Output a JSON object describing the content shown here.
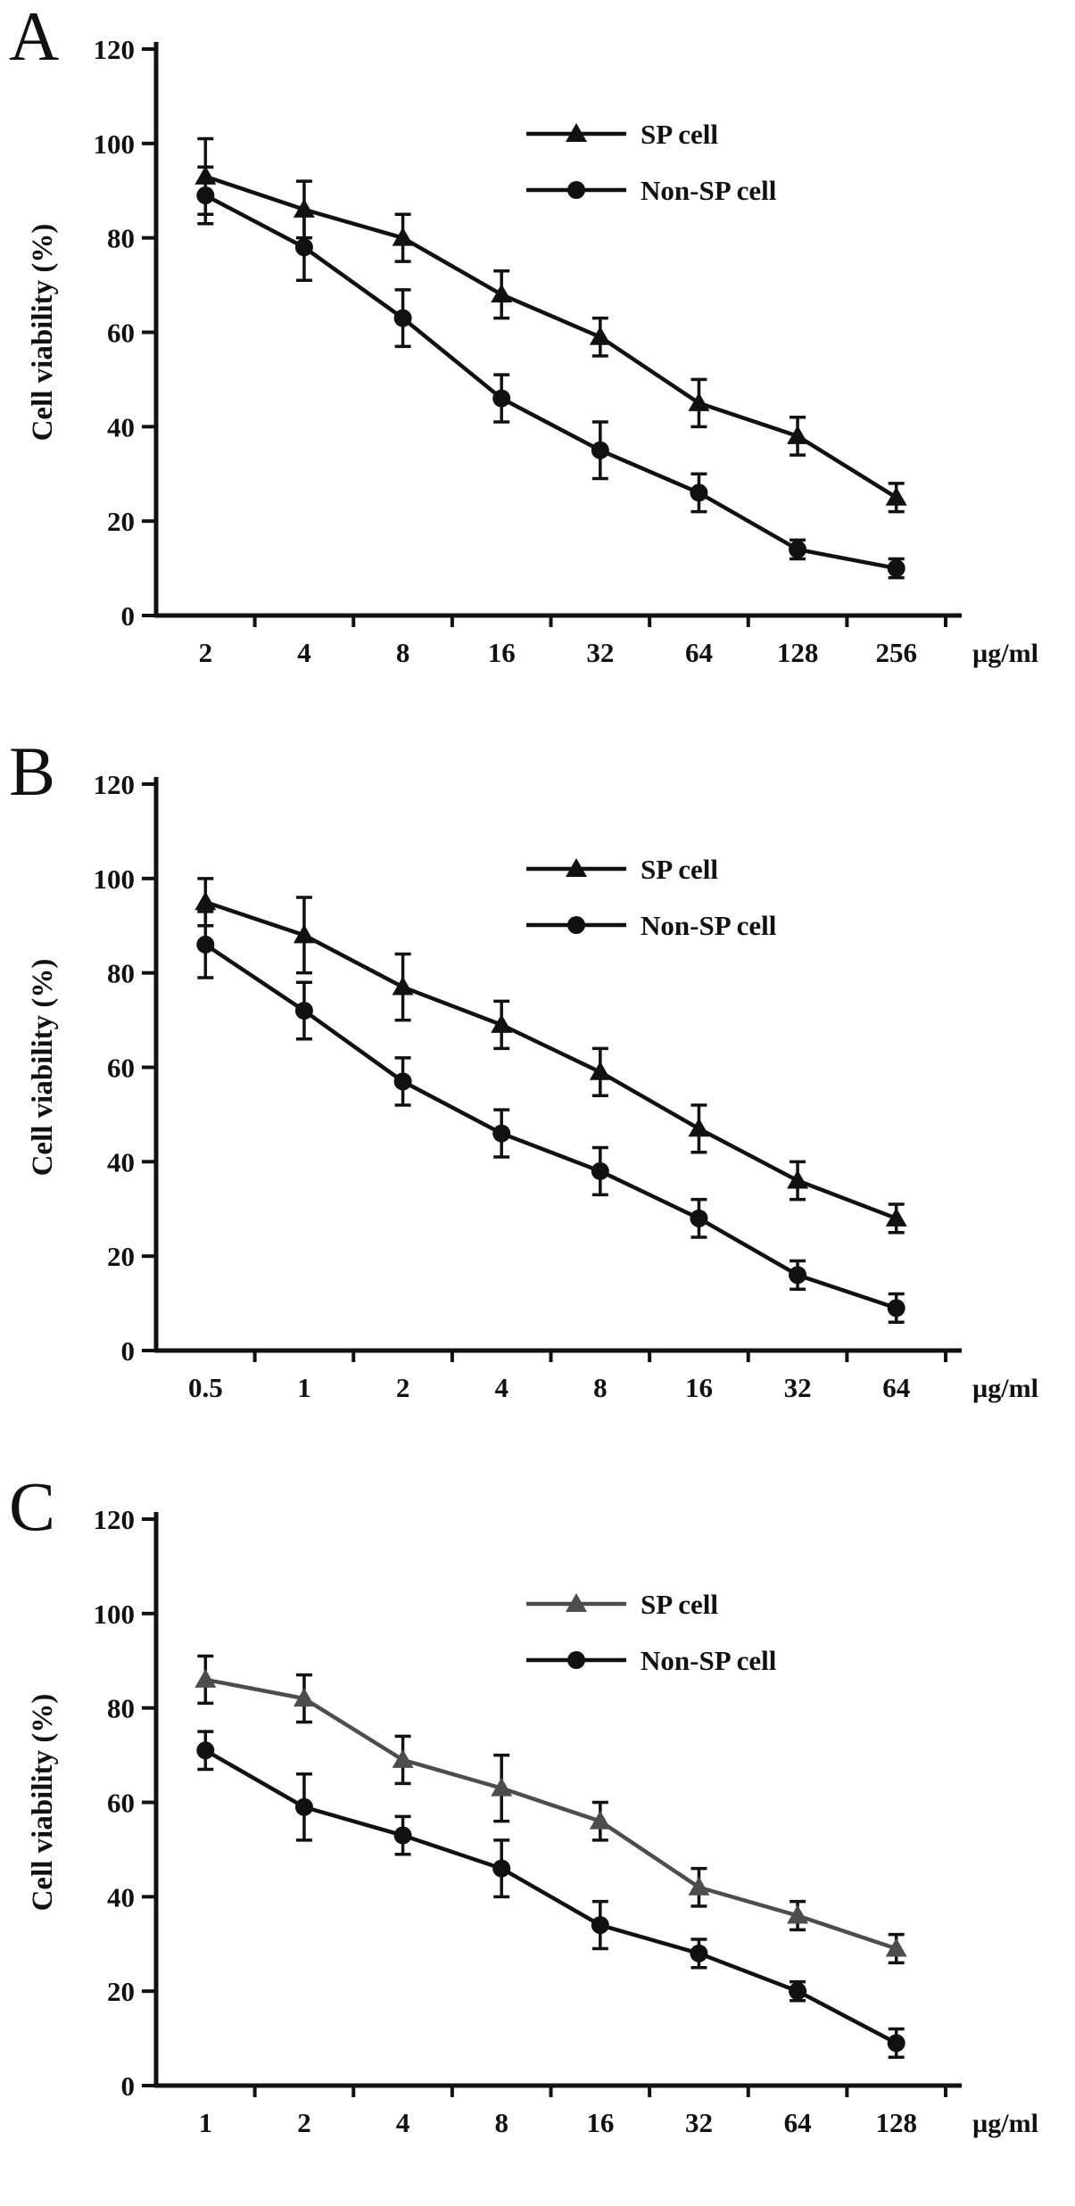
{
  "figure": {
    "description": "Three-panel dose-response figure comparing SP cell and Non-SP cell viability"
  },
  "chart_data": [
    {
      "panel": "A",
      "type": "line",
      "title": "",
      "xlabel": "",
      "ylabel": "Cell viability (%)",
      "x_unit": "µg/ml",
      "ylim": [
        0,
        120
      ],
      "yticks": [
        0,
        20,
        40,
        60,
        80,
        100,
        120
      ],
      "categories": [
        "2",
        "4",
        "8",
        "16",
        "32",
        "64",
        "128",
        "256"
      ],
      "grid": false,
      "legend_position": "upper-right",
      "series": [
        {
          "name": "SP cell",
          "marker": "triangle",
          "color": "#111111",
          "values": [
            93,
            86,
            80,
            68,
            59,
            45,
            38,
            25
          ],
          "errors": [
            8,
            6,
            5,
            5,
            4,
            5,
            4,
            3
          ]
        },
        {
          "name": "Non-SP cell",
          "marker": "circle",
          "color": "#111111",
          "values": [
            89,
            78,
            63,
            46,
            35,
            26,
            14,
            10
          ],
          "errors": [
            6,
            7,
            6,
            5,
            6,
            4,
            2,
            2
          ]
        }
      ]
    },
    {
      "panel": "B",
      "type": "line",
      "title": "",
      "xlabel": "",
      "ylabel": "Cell viability (%)",
      "x_unit": "µg/ml",
      "ylim": [
        0,
        120
      ],
      "yticks": [
        0,
        20,
        40,
        60,
        80,
        100,
        120
      ],
      "categories": [
        "0.5",
        "1",
        "2",
        "4",
        "8",
        "16",
        "32",
        "64"
      ],
      "grid": false,
      "legend_position": "upper-right",
      "series": [
        {
          "name": "SP cell",
          "marker": "triangle",
          "color": "#111111",
          "values": [
            95,
            88,
            77,
            69,
            59,
            47,
            36,
            28
          ],
          "errors": [
            5,
            8,
            7,
            5,
            5,
            5,
            4,
            3
          ]
        },
        {
          "name": "Non-SP cell",
          "marker": "circle",
          "color": "#111111",
          "values": [
            86,
            72,
            57,
            46,
            38,
            28,
            16,
            9
          ],
          "errors": [
            7,
            6,
            5,
            5,
            5,
            4,
            3,
            3
          ]
        }
      ]
    },
    {
      "panel": "C",
      "type": "line",
      "title": "",
      "xlabel": "",
      "ylabel": "Cell viability (%)",
      "x_unit": "µg/ml",
      "ylim": [
        0,
        120
      ],
      "yticks": [
        0,
        20,
        40,
        60,
        80,
        100,
        120
      ],
      "categories": [
        "1",
        "2",
        "4",
        "8",
        "16",
        "32",
        "64",
        "128"
      ],
      "grid": false,
      "legend_position": "upper-right",
      "series": [
        {
          "name": "SP cell",
          "marker": "triangle",
          "color": "#4d4d4d",
          "values": [
            86,
            82,
            69,
            63,
            56,
            42,
            36,
            29
          ],
          "errors": [
            5,
            5,
            5,
            7,
            4,
            4,
            3,
            3
          ]
        },
        {
          "name": "Non-SP cell",
          "marker": "circle",
          "color": "#111111",
          "values": [
            71,
            59,
            53,
            46,
            34,
            28,
            20,
            9
          ],
          "errors": [
            4,
            7,
            4,
            6,
            5,
            3,
            2,
            3
          ]
        }
      ]
    }
  ]
}
